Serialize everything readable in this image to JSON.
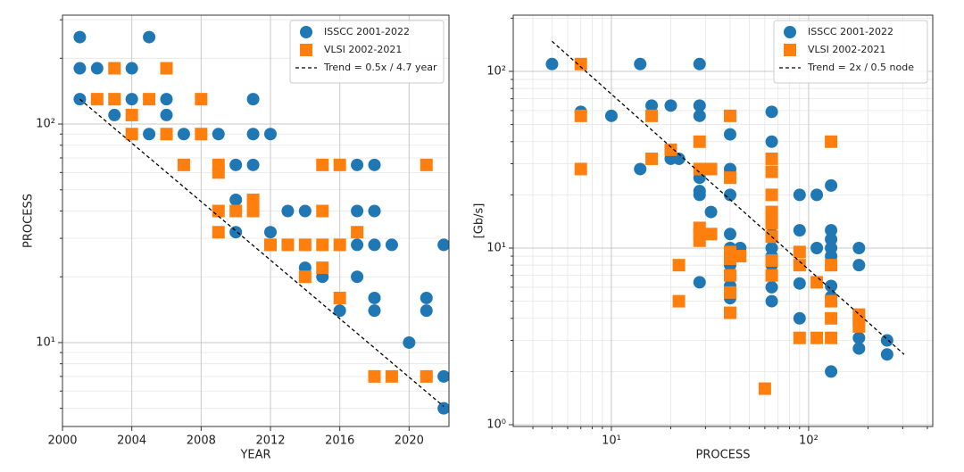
{
  "chart_data": [
    {
      "type": "scatter",
      "xlabel": "YEAR",
      "ylabel": "PROCESS",
      "xscale": "linear",
      "yscale": "log",
      "xlim": [
        2000,
        2022.3
      ],
      "ylim": [
        4.13,
        315
      ],
      "xticks": [
        2000,
        2004,
        2008,
        2012,
        2016,
        2020
      ],
      "yticks": [
        {
          "value": 10,
          "label": "10¹"
        },
        {
          "value": 100,
          "label": "10²"
        }
      ],
      "yminorticks": [
        5,
        6,
        7,
        8,
        9,
        20,
        30,
        40,
        50,
        60,
        70,
        80,
        90,
        200,
        300
      ],
      "grid": true,
      "legend": "upper right",
      "series": [
        {
          "name": "ISSCC 2001-2022",
          "color": "#1f77b4",
          "marker": "circle",
          "x": [
            2001,
            2001,
            2001,
            2002,
            2003,
            2004,
            2004,
            2005,
            2005,
            2006,
            2006,
            2007,
            2009,
            2010,
            2010,
            2010,
            2011,
            2011,
            2011,
            2012,
            2012,
            2013,
            2014,
            2014,
            2015,
            2016,
            2017,
            2017,
            2017,
            2017,
            2018,
            2018,
            2018,
            2018,
            2018,
            2019,
            2020,
            2021,
            2021,
            2021,
            2022,
            2022,
            2022
          ],
          "values": [
            250,
            180,
            130,
            180,
            110,
            180,
            130,
            250,
            90,
            130,
            110,
            90,
            90,
            65,
            45,
            32,
            130,
            90,
            65,
            90,
            32,
            40,
            40,
            22,
            20,
            14,
            65,
            40,
            28,
            20,
            65,
            40,
            28,
            16,
            14,
            28,
            10,
            16,
            14,
            7,
            28,
            7,
            5
          ]
        },
        {
          "name": "VLSI 2002-2021",
          "color": "#ff7f0e",
          "marker": "square",
          "x": [
            2002,
            2003,
            2003,
            2004,
            2004,
            2005,
            2006,
            2006,
            2007,
            2008,
            2008,
            2009,
            2009,
            2009,
            2009,
            2010,
            2011,
            2011,
            2012,
            2013,
            2014,
            2014,
            2015,
            2015,
            2015,
            2015,
            2016,
            2016,
            2016,
            2017,
            2018,
            2019,
            2021,
            2021
          ],
          "values": [
            130,
            180,
            130,
            110,
            90,
            130,
            180,
            90,
            65,
            130,
            90,
            65,
            60,
            40,
            32,
            40,
            45,
            40,
            28,
            28,
            28,
            20,
            65,
            40,
            28,
            22,
            65,
            28,
            16,
            32,
            7,
            7,
            65,
            7
          ]
        },
        {
          "name": "Trend = 0.5x / 4.7 year",
          "color": "#000000",
          "marker": "dashed-line",
          "x": [
            2001,
            2022
          ],
          "values": [
            130,
            5.1
          ]
        }
      ]
    },
    {
      "type": "scatter",
      "xlabel": "PROCESS",
      "ylabel": "[Gb/s]",
      "xscale": "log",
      "yscale": "log",
      "xlim": [
        3.18,
        426
      ],
      "ylim": [
        0.977,
        208
      ],
      "xticks": [
        {
          "value": 10,
          "label": "10¹"
        },
        {
          "value": 100,
          "label": "10²"
        }
      ],
      "yticks": [
        {
          "value": 1,
          "label": "10⁰"
        },
        {
          "value": 10,
          "label": "10¹"
        },
        {
          "value": 100,
          "label": "10²"
        }
      ],
      "xminorticks": [
        4,
        5,
        6,
        7,
        8,
        9,
        20,
        30,
        40,
        50,
        60,
        70,
        80,
        90,
        200,
        300,
        400
      ],
      "yminorticks": [
        2,
        3,
        4,
        5,
        6,
        7,
        8,
        9,
        20,
        30,
        40,
        50,
        60,
        70,
        80,
        90,
        200
      ],
      "grid": true,
      "legend": "upper right",
      "series": [
        {
          "name": "ISSCC 2001-2022",
          "color": "#1f77b4",
          "marker": "circle",
          "x": [
            5,
            7,
            10,
            14,
            14,
            16,
            20,
            20,
            22,
            28,
            28,
            28,
            28,
            28,
            28,
            28,
            28,
            32,
            40,
            40,
            40,
            40,
            40,
            40,
            40,
            40,
            40,
            40,
            45,
            65,
            65,
            65,
            65,
            65,
            65,
            65,
            65,
            65,
            65,
            65,
            90,
            90,
            90,
            90,
            110,
            110,
            130,
            130,
            130,
            130,
            130,
            130,
            130,
            130,
            130,
            180,
            180,
            180,
            180,
            250,
            250
          ],
          "values": [
            110,
            59,
            56,
            110,
            28,
            64,
            64,
            32,
            32,
            110,
            64,
            56,
            25,
            21,
            20,
            12.6,
            6.4,
            16,
            44,
            28,
            26,
            20,
            12,
            10,
            8.7,
            8,
            6.1,
            5.2,
            10,
            59,
            40,
            16,
            14,
            12,
            10,
            9,
            8,
            7,
            6,
            5,
            20,
            12.6,
            6.3,
            4,
            20,
            10,
            22.6,
            12.6,
            11.2,
            10,
            9,
            8,
            6.1,
            5.3,
            2,
            10,
            8,
            3.1,
            2.7,
            3,
            2.5
          ]
        },
        {
          "name": "VLSI 2002-2021",
          "color": "#ff7f0e",
          "marker": "square",
          "x": [
            7,
            7,
            7,
            16,
            16,
            20,
            22,
            22,
            28,
            28,
            32,
            28,
            28,
            28,
            32,
            40,
            40,
            40,
            40,
            45,
            40,
            40,
            40,
            60,
            65,
            65,
            65,
            65,
            65,
            65,
            65,
            65,
            90,
            90,
            90,
            110,
            110,
            130,
            130,
            130,
            130,
            130,
            180,
            180,
            180
          ],
          "values": [
            110,
            56,
            28,
            56,
            32,
            36,
            8,
            5,
            40,
            28,
            28,
            13,
            12,
            11,
            12,
            56,
            25,
            9.5,
            8.7,
            9,
            7,
            5.6,
            4.3,
            1.6,
            32,
            27,
            20,
            16,
            13.8,
            11.6,
            8.5,
            7,
            9.5,
            8,
            3.1,
            6.4,
            3.1,
            40,
            8,
            5,
            4,
            3.1,
            4.2,
            3.9,
            3.6
          ]
        },
        {
          "name": "Trend = 2x / 0.5 node",
          "color": "#000000",
          "marker": "dashed-line",
          "x": [
            5,
            305
          ],
          "values": [
            148,
            2.5
          ]
        }
      ]
    }
  ]
}
